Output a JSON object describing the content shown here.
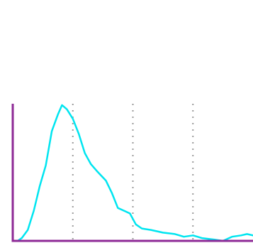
{
  "chart_data": {
    "type": "line",
    "title": "",
    "xlabel": "",
    "ylabel": "",
    "xlim": [
      0,
      4
    ],
    "ylim": [
      0,
      1
    ],
    "grid": {
      "vertical": true,
      "horizontal": false,
      "vertical_at": [
        1,
        2,
        3
      ],
      "style": "dotted"
    },
    "legend": "none",
    "series": [
      {
        "color": "#00e5f0",
        "points": [
          [
            0.08,
            0.0
          ],
          [
            0.15,
            0.02
          ],
          [
            0.25,
            0.08
          ],
          [
            0.35,
            0.22
          ],
          [
            0.45,
            0.4
          ],
          [
            0.55,
            0.55
          ],
          [
            0.65,
            0.8
          ],
          [
            0.75,
            0.92
          ],
          [
            0.82,
            0.99
          ],
          [
            0.9,
            0.96
          ],
          [
            1.0,
            0.89
          ],
          [
            1.1,
            0.78
          ],
          [
            1.2,
            0.64
          ],
          [
            1.3,
            0.56
          ],
          [
            1.4,
            0.51
          ],
          [
            1.55,
            0.44
          ],
          [
            1.65,
            0.35
          ],
          [
            1.75,
            0.24
          ],
          [
            1.85,
            0.22
          ],
          [
            1.95,
            0.2
          ],
          [
            2.05,
            0.12
          ],
          [
            2.15,
            0.09
          ],
          [
            2.3,
            0.08
          ],
          [
            2.5,
            0.06
          ],
          [
            2.7,
            0.05
          ],
          [
            2.85,
            0.03
          ],
          [
            3.0,
            0.04
          ],
          [
            3.15,
            0.02
          ],
          [
            3.35,
            0.01
          ],
          [
            3.5,
            0.0
          ],
          [
            3.65,
            0.03
          ],
          [
            3.8,
            0.04
          ],
          [
            3.9,
            0.05
          ],
          [
            4.0,
            0.04
          ]
        ]
      }
    ],
    "axis_color": "#8e2a96",
    "grid_color": "#9a9a9a"
  }
}
